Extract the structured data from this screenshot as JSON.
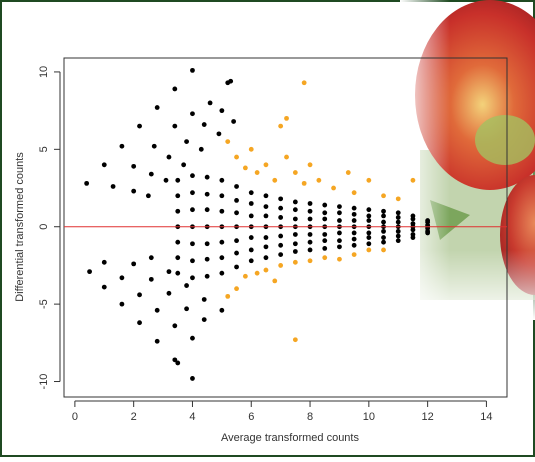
{
  "chart_data": {
    "type": "scatter",
    "xlabel": "Average transformed counts",
    "ylabel": "Differential transformed counts",
    "xlim": [
      -0.37,
      14.7
    ],
    "ylim": [
      -11,
      10.9
    ],
    "xticks": [
      0,
      2,
      4,
      6,
      8,
      10,
      12,
      14
    ],
    "yticks": [
      -10,
      -5,
      0,
      5,
      10
    ],
    "hline": 0,
    "hline_color": "#e03030",
    "series": [
      {
        "color": "#000000",
        "x": [
          0.4,
          1.0,
          1.6,
          2.2,
          2.8,
          3.4,
          4.0,
          1.3,
          2.0,
          2.7,
          3.4,
          4.0,
          4.6,
          2.0,
          2.6,
          3.2,
          3.8,
          4.4,
          5.0,
          2.5,
          3.1,
          3.7,
          4.3,
          4.9,
          5.4,
          5.3,
          5.2,
          0.5,
          1.0,
          1.6,
          2.2,
          2.8,
          3.4,
          3.5,
          4.0,
          1.0,
          1.6,
          2.2,
          2.8,
          3.4,
          4.0,
          2.0,
          2.6,
          3.2,
          3.8,
          4.4,
          2.6,
          3.2,
          3.8,
          4.4,
          5.0,
          3.5,
          3.5,
          3.5,
          3.5,
          3.5,
          3.5,
          3.5,
          4,
          4,
          4,
          4,
          4,
          4,
          4,
          4.5,
          4.5,
          4.5,
          4.5,
          4.5,
          4.5,
          4.5,
          5,
          5,
          5,
          5,
          5,
          5,
          5,
          5.5,
          5.5,
          5.5,
          5.5,
          5.5,
          5.5,
          5.5,
          6,
          6,
          6,
          6,
          6,
          6,
          6,
          6.5,
          6.5,
          6.5,
          6.5,
          6.5,
          6.5,
          6.5,
          7,
          7,
          7,
          7,
          7,
          7,
          7,
          7.5,
          7.5,
          7.5,
          7.5,
          7.5,
          7.5,
          7.5,
          8,
          8,
          8,
          8,
          8,
          8,
          8,
          8.5,
          8.5,
          8.5,
          8.5,
          8.5,
          8.5,
          8.5,
          9,
          9,
          9,
          9,
          9,
          9,
          9,
          9.5,
          9.5,
          9.5,
          9.5,
          9.5,
          9.5,
          9.5,
          10,
          10,
          10,
          10,
          10,
          10,
          10,
          10.5,
          10.5,
          10.5,
          10.5,
          10.5,
          10.5,
          10.5,
          11,
          11,
          11,
          11,
          11,
          11,
          11,
          11.5,
          11.5,
          11.5,
          11.5,
          11.5,
          11.5,
          11.5,
          12,
          12,
          12,
          12,
          12,
          12,
          12
        ],
        "values": [
          2.8,
          4.0,
          5.2,
          6.5,
          7.7,
          8.9,
          10.1,
          2.6,
          3.9,
          5.2,
          6.5,
          7.3,
          8.0,
          2.3,
          3.4,
          4.5,
          5.5,
          6.6,
          7.5,
          2.0,
          3.0,
          4.0,
          5.0,
          6.0,
          6.8,
          9.4,
          9.3,
          -2.9,
          -3.9,
          -5.0,
          -6.2,
          -7.4,
          -8.6,
          -8.8,
          -9.8,
          -2.3,
          -3.3,
          -4.4,
          -5.4,
          -6.4,
          -7.2,
          -2.4,
          -3.4,
          -4.3,
          -5.3,
          -6.0,
          -2.0,
          -2.9,
          -3.8,
          -4.7,
          -5.4,
          3.0,
          2.0,
          1.0,
          0,
          -1.0,
          -2.0,
          -3.0,
          3.3,
          2.2,
          1.1,
          0,
          -1.1,
          -2.2,
          -3.3,
          3.2,
          2.1,
          1.1,
          0,
          -1.1,
          -2.1,
          -3.2,
          3.0,
          2.0,
          1.0,
          0,
          -1.0,
          -2.0,
          -3.0,
          2.6,
          1.7,
          0.9,
          0,
          -0.9,
          -1.7,
          -2.6,
          2.2,
          1.5,
          0.7,
          0,
          -0.7,
          -1.5,
          -2.2,
          2.0,
          1.3,
          0.7,
          0,
          -0.7,
          -1.3,
          -2.0,
          1.8,
          1.2,
          0.6,
          0,
          -0.6,
          -1.2,
          -1.8,
          1.6,
          1.1,
          0.5,
          0,
          -0.5,
          -1.1,
          -1.6,
          1.5,
          1.0,
          0.5,
          0,
          -0.5,
          -1.0,
          -1.5,
          1.4,
          0.9,
          0.5,
          0,
          -0.5,
          -0.9,
          -1.4,
          1.3,
          0.9,
          0.4,
          0,
          -0.4,
          -0.9,
          -1.3,
          1.2,
          0.8,
          0.4,
          0,
          -0.4,
          -0.8,
          -1.2,
          1.1,
          0.7,
          0.4,
          0,
          -0.4,
          -0.7,
          -1.1,
          1.0,
          0.7,
          0.3,
          0,
          -0.3,
          -0.7,
          -1.0,
          0.9,
          0.6,
          0.3,
          0,
          -0.3,
          -0.6,
          -0.9,
          0.7,
          0.5,
          0.2,
          0,
          -0.2,
          -0.5,
          -0.7,
          0.4,
          0.3,
          0.1,
          0,
          -0.1,
          -0.3,
          -0.4
        ]
      },
      {
        "color": "#f5a623",
        "x": [
          5.5,
          5.8,
          6.0,
          6.2,
          6.5,
          6.8,
          7.0,
          7.2,
          7.5,
          7.8,
          8.0,
          8.3,
          8.8,
          9.3,
          9.5,
          10.0,
          10.5,
          11.0,
          5.2,
          7.8,
          7.2,
          11.5,
          5.5,
          5.8,
          6.2,
          6.5,
          7.0,
          7.5,
          8.0,
          8.5,
          9.0,
          9.5,
          10.0,
          10.5,
          7.5,
          6.8,
          5.2
        ],
        "values": [
          4.5,
          3.8,
          5.0,
          3.5,
          4.0,
          3.0,
          6.5,
          4.5,
          3.5,
          2.8,
          4.0,
          3.0,
          2.5,
          3.5,
          2.2,
          3.0,
          2.0,
          1.8,
          5.5,
          9.3,
          7.0,
          3.0,
          -4.0,
          -3.2,
          -3.0,
          -2.8,
          -2.5,
          -2.3,
          -2.2,
          -2.0,
          -2.1,
          -1.8,
          -1.5,
          -1.5,
          -7.3,
          -3.5,
          -4.5
        ]
      }
    ]
  }
}
